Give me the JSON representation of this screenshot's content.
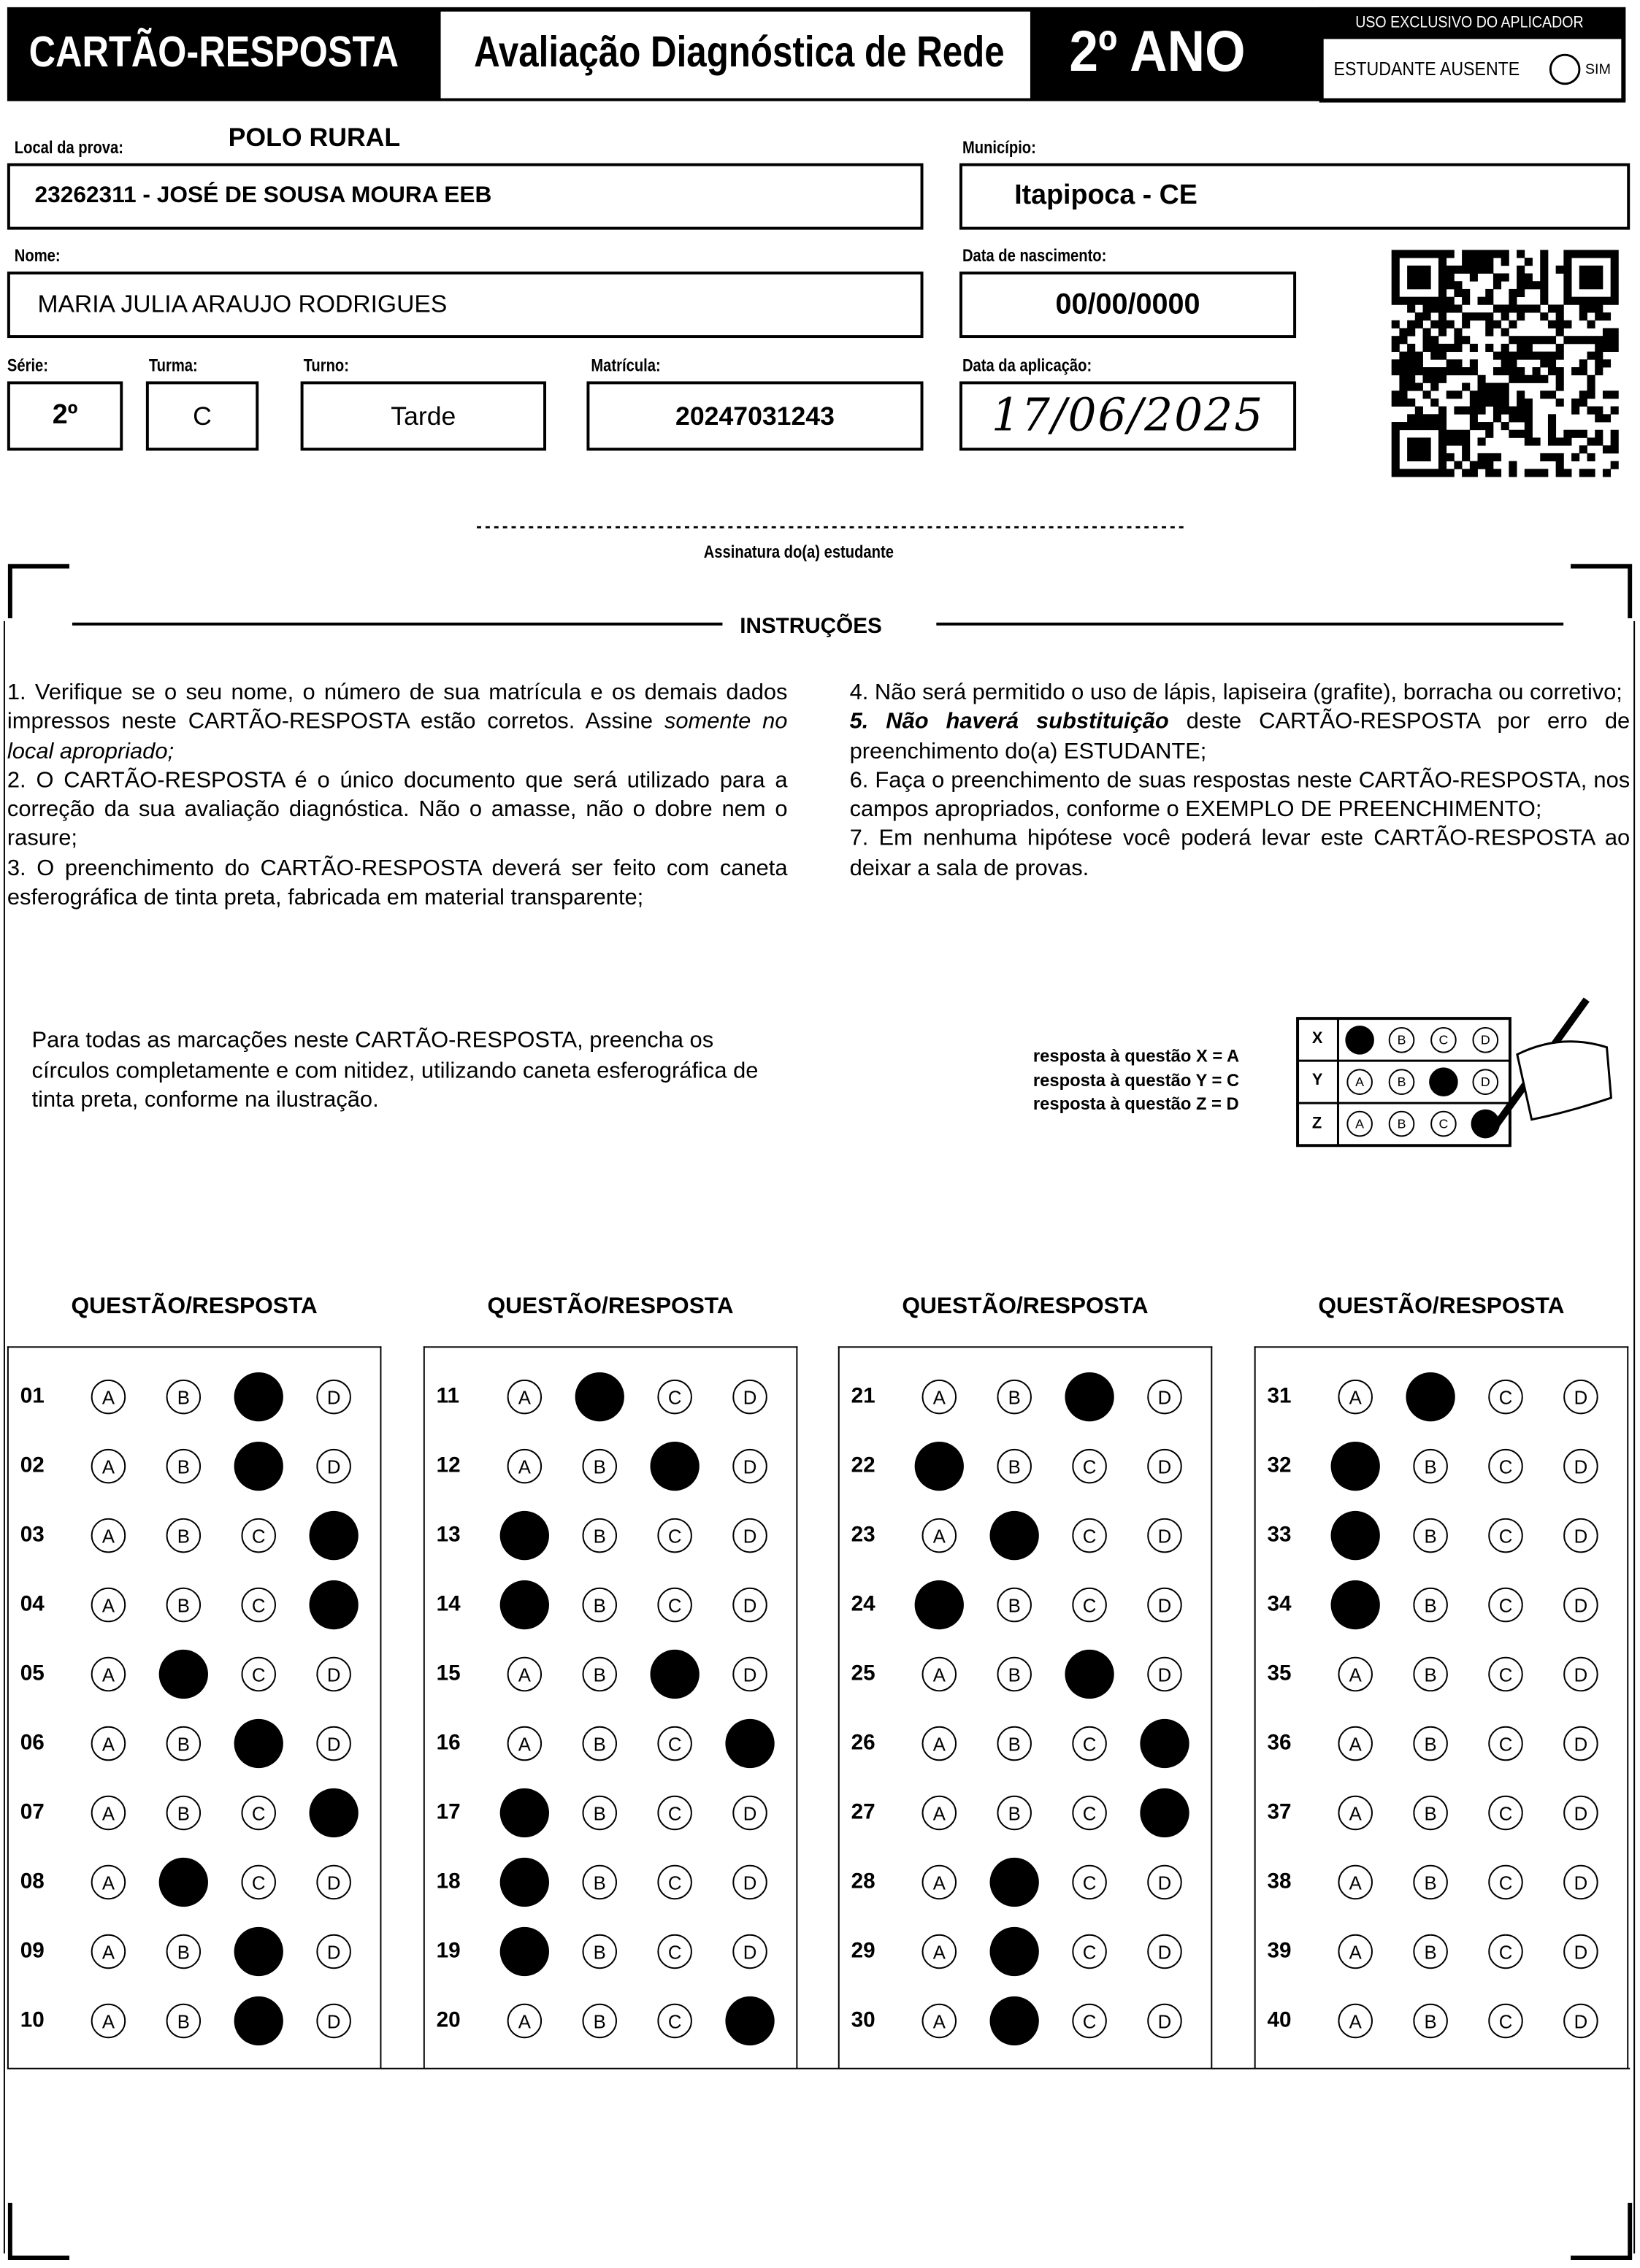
{
  "header": {
    "title": "CARTÃO-RESPOSTA",
    "subtitle": "Avaliação Diagnóstica de Rede",
    "grade": "2º ANO",
    "applicator_label": "USO EXCLUSIVO DO APLICADOR",
    "absent_label": "ESTUDANTE AUSENTE",
    "absent_option": "SIM"
  },
  "fields": {
    "exam_site_label": "Local da prova:",
    "exam_site": "POLO RURAL",
    "school": "23262311 - JOSÉ DE SOUSA MOURA EEB",
    "city_label": "Município:",
    "city": "Itapipoca - CE",
    "name_label": "Nome:",
    "name": "MARIA JULIA ARAUJO RODRIGUES",
    "birth_label": "Data de nascimento:",
    "birth": "00/00/0000",
    "series_label": "Série:",
    "series": "2º",
    "class_label": "Turma:",
    "class": "C",
    "shift_label": "Turno:",
    "shift": "Tarde",
    "registration_label": "Matrícula:",
    "registration": "20247031243",
    "application_date_label": "Data da aplicação:",
    "application_date": "17/06/2025",
    "signature_label": "Assinatura do(a) estudante"
  },
  "instructions": {
    "title": "INSTRUÇÕES",
    "left": [
      [
        {
          "text": "1. Verifique se o seu nome, o número de sua matrícula e os demais dados impressos neste CARTÃO-RESPOSTA estão corretos. Assine "
        },
        {
          "text": "somente no local apropriado;",
          "italic": true
        }
      ],
      [
        {
          "text": "2. O CARTÃO-RESPOSTA é o único documento que será utilizado para a correção da sua avaliação diagnóstica. Não o amasse, não o dobre nem o rasure;"
        }
      ],
      [
        {
          "text": "3. O preenchimento do CARTÃO-RESPOSTA deverá ser feito com caneta esferográfica de tinta preta, fabricada em material transparente;"
        }
      ]
    ],
    "right": [
      [
        {
          "text": "4. Não será permitido o uso de lápis, lapiseira (grafite), borracha ou corretivo;"
        }
      ],
      [
        {
          "text": "5. Não haverá substituição",
          "italic": true
        },
        {
          "text": " deste CARTÃO-RESPOSTA por erro de preenchimento do(a) ESTUDANTE;"
        }
      ],
      [
        {
          "text": "6. Faça o preenchimento de suas respostas neste CARTÃO-RESPOSTA, nos campos apropriados, conforme o EXEMPLO DE PREENCHIMENTO;"
        }
      ],
      [
        {
          "text": "7. Em nenhuma hipótese você poderá levar este CARTÃO-RESPOSTA ao deixar a sala de provas."
        }
      ]
    ]
  },
  "example": {
    "text": [
      "Para todas as marcações neste CARTÃO-RESPOSTA, preencha os",
      "círculos completamente e com nitidez, utilizando caneta esferográfica de",
      "tinta preta, conforme na ilustração."
    ],
    "legend": [
      "resposta à questão X = A",
      "resposta à questão Y = C",
      "resposta à questão Z = D"
    ],
    "rows": [
      {
        "label": "X",
        "marked": "A"
      },
      {
        "label": "Y",
        "marked": "C"
      },
      {
        "label": "Z",
        "marked": "D"
      }
    ]
  },
  "options": [
    "A",
    "B",
    "C",
    "D"
  ],
  "blocks": [
    {
      "title": "QUESTÃO/RESPOSTA",
      "questions": [
        {
          "number": "01",
          "marked": "C"
        },
        {
          "number": "02",
          "marked": "C"
        },
        {
          "number": "03",
          "marked": "D"
        },
        {
          "number": "04",
          "marked": "D"
        },
        {
          "number": "05",
          "marked": "B"
        },
        {
          "number": "06",
          "marked": "C"
        },
        {
          "number": "07",
          "marked": "D"
        },
        {
          "number": "08",
          "marked": "B"
        },
        {
          "number": "09",
          "marked": "C"
        },
        {
          "number": "10",
          "marked": "C"
        }
      ]
    },
    {
      "title": "QUESTÃO/RESPOSTA",
      "questions": [
        {
          "number": "11",
          "marked": "B"
        },
        {
          "number": "12",
          "marked": "C"
        },
        {
          "number": "13",
          "marked": "A"
        },
        {
          "number": "14",
          "marked": "A"
        },
        {
          "number": "15",
          "marked": "C"
        },
        {
          "number": "16",
          "marked": "D"
        },
        {
          "number": "17",
          "marked": "A"
        },
        {
          "number": "18",
          "marked": "A"
        },
        {
          "number": "19",
          "marked": "A"
        },
        {
          "number": "20",
          "marked": "D"
        }
      ]
    },
    {
      "title": "QUESTÃO/RESPOSTA",
      "questions": [
        {
          "number": "21",
          "marked": "C"
        },
        {
          "number": "22",
          "marked": "A"
        },
        {
          "number": "23",
          "marked": "B"
        },
        {
          "number": "24",
          "marked": "A"
        },
        {
          "number": "25",
          "marked": "C"
        },
        {
          "number": "26",
          "marked": "D"
        },
        {
          "number": "27",
          "marked": "D"
        },
        {
          "number": "28",
          "marked": "B"
        },
        {
          "number": "29",
          "marked": "B"
        },
        {
          "number": "30",
          "marked": "B"
        }
      ]
    },
    {
      "title": "QUESTÃO/RESPOSTA",
      "questions": [
        {
          "number": "31",
          "marked": "B"
        },
        {
          "number": "32",
          "marked": "A"
        },
        {
          "number": "33",
          "marked": "A"
        },
        {
          "number": "34",
          "marked": "A"
        },
        {
          "number": "35",
          "marked": null
        },
        {
          "number": "36",
          "marked": null
        },
        {
          "number": "37",
          "marked": null
        },
        {
          "number": "38",
          "marked": null
        },
        {
          "number": "39",
          "marked": null
        },
        {
          "number": "40",
          "marked": null
        }
      ]
    }
  ]
}
